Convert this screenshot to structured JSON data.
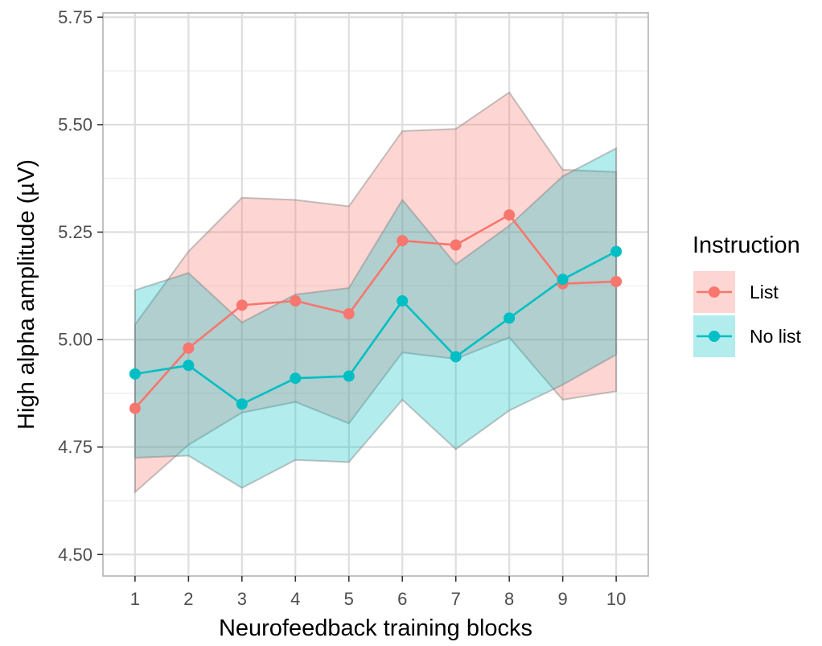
{
  "chart_data": {
    "type": "line",
    "xlabel": "Neurofeedback training blocks",
    "ylabel": "High alpha amplitude (µV)",
    "x": [
      1,
      2,
      3,
      4,
      5,
      6,
      7,
      8,
      9,
      10
    ],
    "xlim": [
      0.4,
      10.6
    ],
    "ylim": [
      4.45,
      5.76
    ],
    "yticks": [
      4.5,
      4.75,
      5.0,
      5.25,
      5.5,
      5.75
    ],
    "ytick_labels": [
      "4.50",
      "4.75",
      "5.00",
      "5.25",
      "5.50",
      "5.75"
    ],
    "xtick_labels": [
      "1",
      "2",
      "3",
      "4",
      "5",
      "6",
      "7",
      "8",
      "9",
      "10"
    ],
    "grid": true,
    "legend": {
      "title": "Instruction",
      "position": "right"
    },
    "series": [
      {
        "name": "List",
        "color": "#F8766D",
        "values": [
          4.84,
          4.98,
          5.08,
          5.09,
          5.06,
          5.23,
          5.22,
          5.29,
          5.13,
          5.135
        ],
        "lower": [
          4.645,
          4.755,
          4.83,
          4.855,
          4.805,
          4.97,
          4.955,
          5.005,
          4.86,
          4.88
        ],
        "upper": [
          5.035,
          5.205,
          5.33,
          5.325,
          5.31,
          5.485,
          5.49,
          5.575,
          5.395,
          5.39
        ]
      },
      {
        "name": "No list",
        "color": "#00BFC4",
        "values": [
          4.92,
          4.94,
          4.85,
          4.91,
          4.915,
          5.09,
          4.96,
          5.05,
          5.14,
          5.205
        ],
        "lower": [
          4.725,
          4.73,
          4.655,
          4.72,
          4.715,
          4.86,
          4.745,
          4.835,
          4.895,
          4.965
        ],
        "upper": [
          5.115,
          5.155,
          5.04,
          5.105,
          5.12,
          5.325,
          5.175,
          5.265,
          5.38,
          5.445
        ]
      }
    ]
  }
}
